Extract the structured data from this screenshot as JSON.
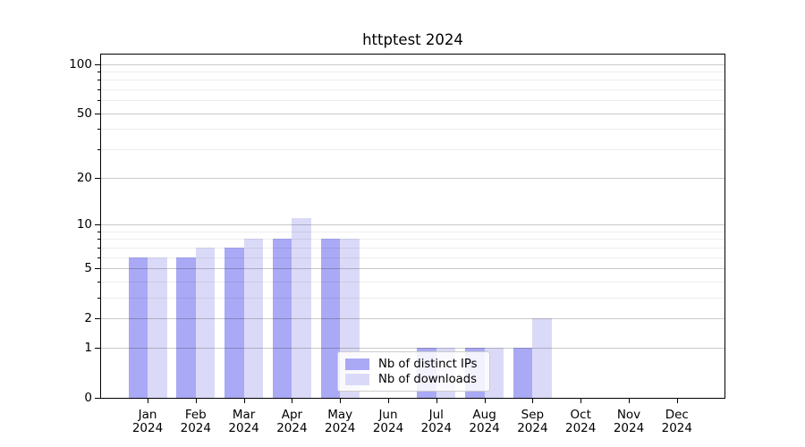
{
  "title": "httptest 2024",
  "chart_data": {
    "type": "bar",
    "title": "httptest 2024",
    "categories": [
      "Jan",
      "Feb",
      "Mar",
      "Apr",
      "May",
      "Jun",
      "Jul",
      "Aug",
      "Sep",
      "Oct",
      "Nov",
      "Dec"
    ],
    "category_year": "2024",
    "series": [
      {
        "name": "Nb of distinct IPs",
        "color": "#a9a9f5",
        "values": [
          6,
          6,
          7,
          8,
          8,
          0,
          1,
          1,
          1,
          0,
          0,
          0
        ]
      },
      {
        "name": "Nb of downloads",
        "color": "#dadaf8",
        "values": [
          6,
          7,
          8,
          11,
          8,
          0,
          1,
          1,
          2,
          0,
          0,
          0
        ]
      }
    ],
    "yaxis": {
      "scale": "log1p",
      "major_ticks": [
        0,
        1,
        2,
        5,
        10,
        20,
        50,
        100
      ],
      "minor_ticks": [
        3,
        4,
        6,
        7,
        8,
        9,
        30,
        40,
        60,
        70,
        80,
        90
      ],
      "max_value": 114
    },
    "xlabel": "",
    "ylabel": "",
    "grid": true,
    "legend_position": "bottom-center"
  },
  "colors": {
    "background": "#ffffff",
    "axis": "#000000",
    "text": "#000000",
    "grid_major": "rgba(0,0,0,0.21)",
    "grid_minor": "rgba(0,0,0,0.07)",
    "legend_border": "#cccccc",
    "bar_distinct_ips": "#a9a9f5",
    "bar_downloads": "#dadaf8"
  }
}
